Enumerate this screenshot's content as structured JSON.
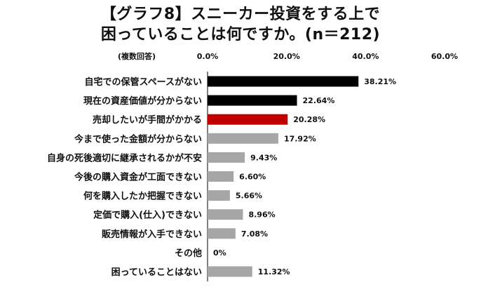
{
  "title": {
    "line1": "【グラフ8】スニーカー投資をする上で",
    "line2": "困っていることは何ですか。(n＝212)"
  },
  "chart_data": {
    "type": "bar",
    "orientation": "horizontal",
    "axis_label": "(複数回答)",
    "xlim": [
      0,
      60
    ],
    "tick_values": [
      0,
      20,
      40,
      60
    ],
    "tick_labels": [
      "0.0%",
      "20.0%",
      "40.0%",
      "60.0%"
    ],
    "tick_position": "top",
    "grid": false,
    "categories": [
      "自宅での保管スペースがない",
      "現在の資産価値が分からない",
      "売却したいが手間がかかる",
      "今まで使った金額が分からない",
      "自身の死後適切に継承されるかが不安",
      "今後の購入資金が工面できない",
      "何を購入したか把握できない",
      "定価で購入(仕入)できない",
      "販売情報が入手できない",
      "その他",
      "困っていることはない"
    ],
    "values": [
      38.21,
      22.64,
      20.28,
      17.92,
      9.43,
      6.6,
      5.66,
      8.96,
      7.08,
      0,
      11.32
    ],
    "value_labels": [
      "38.21%",
      "22.64%",
      "20.28%",
      "17.92%",
      "9.43%",
      "6.60%",
      "5.66%",
      "8.96%",
      "7.08%",
      "0%",
      "11.32%"
    ],
    "bar_colors": [
      "#000000",
      "#000000",
      "#c00000",
      "#a6a6a6",
      "#a6a6a6",
      "#a6a6a6",
      "#a6a6a6",
      "#a6a6a6",
      "#a6a6a6",
      "#a6a6a6",
      "#a6a6a6"
    ],
    "axis_color": "#000000"
  }
}
